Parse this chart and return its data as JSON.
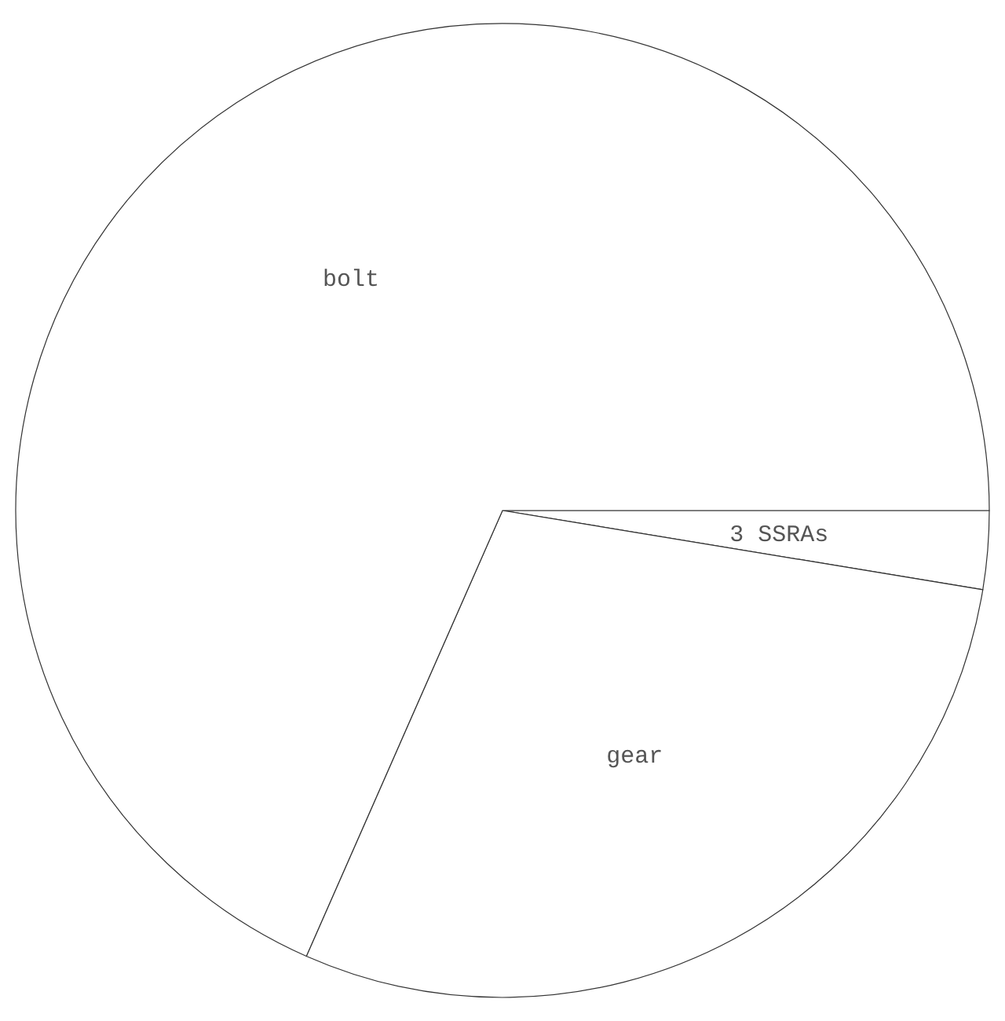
{
  "chart_data": {
    "type": "pie",
    "categories": [
      "3 SSRAs",
      "gear",
      "bolt"
    ],
    "values": [
      2.6,
      29.0,
      68.4
    ],
    "colors": [
      "#ffffff",
      "#ffffff",
      "#ffffff"
    ]
  }
}
